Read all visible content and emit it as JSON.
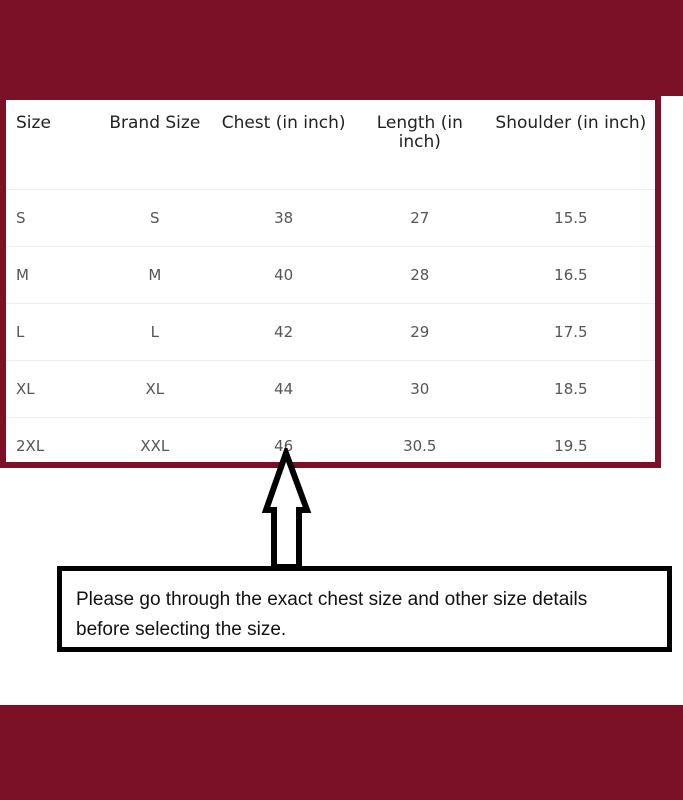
{
  "colors": {
    "brand": "#7b1127",
    "border": "#000000"
  },
  "table": {
    "headers": [
      "Size",
      "Brand Size",
      "Chest (in inch)",
      "Length (in inch)",
      "Shoulder (in inch)"
    ],
    "rows": [
      [
        "S",
        "S",
        "38",
        "27",
        "15.5"
      ],
      [
        "M",
        "M",
        "40",
        "28",
        "16.5"
      ],
      [
        "L",
        "L",
        "42",
        "29",
        "17.5"
      ],
      [
        "XL",
        "XL",
        "44",
        "30",
        "18.5"
      ],
      [
        "2XL",
        "XXL",
        "46",
        "30.5",
        "19.5"
      ]
    ]
  },
  "arrow_icon": "hollow-up-arrow",
  "note": {
    "text": "Please go through the exact chest size and other size details before selecting the size."
  }
}
